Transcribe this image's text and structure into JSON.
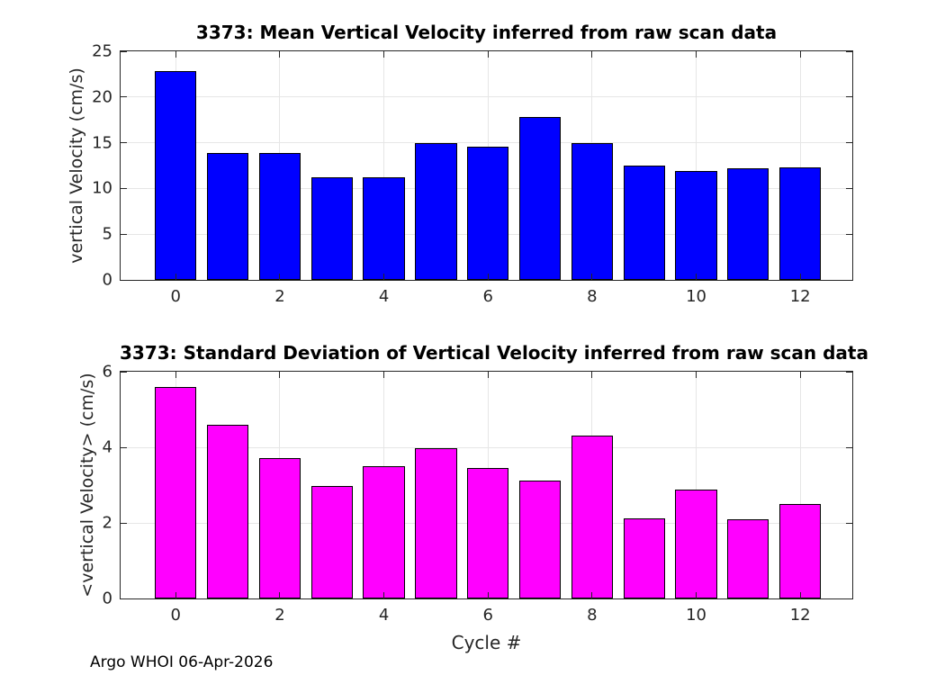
{
  "page": {
    "background": "#ffffff",
    "footer": "Argo WHOI 06-Apr-2026"
  },
  "chart_data": [
    {
      "type": "bar",
      "title": "3373: Mean Vertical Velocity inferred from raw scan data",
      "ylabel": "vertical Velocity (cm/s)",
      "xlabel": "",
      "categories": [
        0,
        1,
        2,
        3,
        4,
        5,
        6,
        7,
        8,
        9,
        10,
        11,
        12
      ],
      "values": [
        22.8,
        13.9,
        13.9,
        11.2,
        11.2,
        15.0,
        14.6,
        17.8,
        15.0,
        12.5,
        11.9,
        12.2,
        12.3
      ],
      "bar_color": "#0000ff",
      "edge_color": "#000000",
      "bar_width": 0.8,
      "xlim": [
        -1.06,
        13.0
      ],
      "ylim": [
        0,
        25
      ],
      "xticks": [
        0,
        2,
        4,
        6,
        8,
        10,
        12
      ],
      "yticks": [
        0,
        5,
        10,
        15,
        20,
        25
      ],
      "grid": true,
      "legend": null
    },
    {
      "type": "bar",
      "title": "3373: Standard Deviation of Vertical Velocity inferred from raw scan data",
      "ylabel": "<vertical Velocity> (cm/s)",
      "xlabel": "Cycle #",
      "categories": [
        0,
        1,
        2,
        3,
        4,
        5,
        6,
        7,
        8,
        9,
        10,
        11,
        12
      ],
      "values": [
        5.6,
        4.6,
        3.72,
        2.98,
        3.5,
        3.97,
        3.45,
        3.12,
        4.3,
        2.12,
        2.88,
        2.1,
        2.5
      ],
      "bar_color": "#ff00ff",
      "edge_color": "#000000",
      "bar_width": 0.8,
      "xlim": [
        -1.06,
        13.0
      ],
      "ylim": [
        0,
        6
      ],
      "xticks": [
        0,
        2,
        4,
        6,
        8,
        10,
        12
      ],
      "yticks": [
        0,
        2,
        4,
        6
      ],
      "grid": true,
      "legend": null
    }
  ]
}
